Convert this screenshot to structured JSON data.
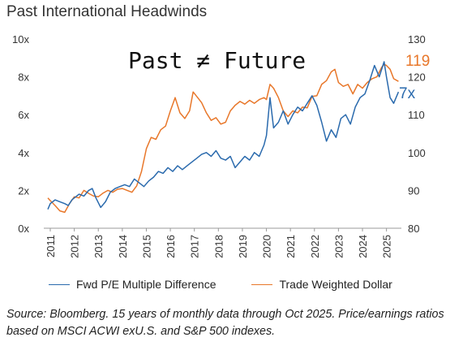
{
  "chart_data": {
    "type": "line",
    "title": "Past International Headwinds",
    "annotation": "Past ≠ Future",
    "x_ticks": [
      "2011",
      "2012",
      "2013",
      "2014",
      "2015",
      "2016",
      "2017",
      "2018",
      "2019",
      "2020",
      "2021",
      "2022",
      "2023",
      "2024",
      "2025"
    ],
    "y_left": {
      "ticks": [
        "0x",
        "2x",
        "4x",
        "6x",
        "8x",
        "10x"
      ],
      "range": [
        0,
        10
      ]
    },
    "y_right": {
      "ticks": [
        "80",
        "90",
        "100",
        "110",
        "120",
        "130"
      ],
      "range": [
        80,
        130
      ]
    },
    "grid": false,
    "legend_position": "bottom",
    "series": [
      {
        "name": "Fwd P/E Multiple Difference",
        "axis": "left",
        "color": "#2a6aad",
        "end_label": "7x",
        "points": [
          [
            2010.9,
            1.0
          ],
          [
            2011.0,
            1.3
          ],
          [
            2011.2,
            1.5
          ],
          [
            2011.4,
            1.4
          ],
          [
            2011.6,
            1.3
          ],
          [
            2011.75,
            1.2
          ],
          [
            2011.9,
            1.5
          ],
          [
            2012.0,
            1.6
          ],
          [
            2012.2,
            1.8
          ],
          [
            2012.4,
            1.7
          ],
          [
            2012.6,
            2.0
          ],
          [
            2012.75,
            2.1
          ],
          [
            2012.9,
            1.6
          ],
          [
            2013.1,
            1.1
          ],
          [
            2013.3,
            1.4
          ],
          [
            2013.5,
            1.9
          ],
          [
            2013.7,
            2.1
          ],
          [
            2013.9,
            2.2
          ],
          [
            2014.1,
            2.3
          ],
          [
            2014.3,
            2.2
          ],
          [
            2014.5,
            2.6
          ],
          [
            2014.7,
            2.4
          ],
          [
            2014.9,
            2.2
          ],
          [
            2015.1,
            2.5
          ],
          [
            2015.3,
            2.7
          ],
          [
            2015.5,
            3.0
          ],
          [
            2015.7,
            2.9
          ],
          [
            2015.9,
            3.2
          ],
          [
            2016.1,
            3.0
          ],
          [
            2016.3,
            3.3
          ],
          [
            2016.5,
            3.1
          ],
          [
            2016.7,
            3.3
          ],
          [
            2016.9,
            3.5
          ],
          [
            2017.1,
            3.7
          ],
          [
            2017.3,
            3.9
          ],
          [
            2017.5,
            4.0
          ],
          [
            2017.7,
            3.8
          ],
          [
            2017.9,
            4.1
          ],
          [
            2018.1,
            3.7
          ],
          [
            2018.3,
            3.6
          ],
          [
            2018.5,
            3.8
          ],
          [
            2018.7,
            3.2
          ],
          [
            2018.9,
            3.5
          ],
          [
            2019.1,
            3.8
          ],
          [
            2019.3,
            3.6
          ],
          [
            2019.5,
            4.0
          ],
          [
            2019.7,
            3.8
          ],
          [
            2019.9,
            4.4
          ],
          [
            2020.0,
            4.9
          ],
          [
            2020.15,
            6.9
          ],
          [
            2020.3,
            5.3
          ],
          [
            2020.5,
            5.6
          ],
          [
            2020.7,
            6.2
          ],
          [
            2020.9,
            5.5
          ],
          [
            2021.1,
            6.0
          ],
          [
            2021.3,
            6.4
          ],
          [
            2021.5,
            6.2
          ],
          [
            2021.7,
            6.6
          ],
          [
            2021.9,
            7.0
          ],
          [
            2022.1,
            6.5
          ],
          [
            2022.3,
            5.6
          ],
          [
            2022.5,
            4.6
          ],
          [
            2022.7,
            5.2
          ],
          [
            2022.9,
            4.8
          ],
          [
            2023.1,
            5.8
          ],
          [
            2023.3,
            6.0
          ],
          [
            2023.5,
            5.5
          ],
          [
            2023.7,
            6.4
          ],
          [
            2023.9,
            6.9
          ],
          [
            2024.1,
            7.1
          ],
          [
            2024.3,
            7.8
          ],
          [
            2024.5,
            8.6
          ],
          [
            2024.7,
            8.0
          ],
          [
            2024.9,
            8.8
          ],
          [
            2025.0,
            8.0
          ],
          [
            2025.15,
            6.9
          ],
          [
            2025.3,
            6.6
          ],
          [
            2025.5,
            7.2
          ]
        ]
      },
      {
        "name": "Trade Weighted Dollar",
        "axis": "right",
        "color": "#e8772a",
        "end_label": "119",
        "points": [
          [
            2010.9,
            88.0
          ],
          [
            2011.0,
            87.3
          ],
          [
            2011.2,
            86.0
          ],
          [
            2011.4,
            84.6
          ],
          [
            2011.6,
            84.2
          ],
          [
            2011.8,
            86.5
          ],
          [
            2012.0,
            88.3
          ],
          [
            2012.2,
            88.0
          ],
          [
            2012.4,
            90.0
          ],
          [
            2012.6,
            89.2
          ],
          [
            2012.8,
            88.5
          ],
          [
            2013.0,
            88.3
          ],
          [
            2013.2,
            89.3
          ],
          [
            2013.4,
            90.0
          ],
          [
            2013.6,
            89.5
          ],
          [
            2013.8,
            90.3
          ],
          [
            2014.0,
            90.5
          ],
          [
            2014.2,
            90.0
          ],
          [
            2014.4,
            89.5
          ],
          [
            2014.6,
            91.2
          ],
          [
            2014.8,
            95.0
          ],
          [
            2015.0,
            101.0
          ],
          [
            2015.2,
            104.0
          ],
          [
            2015.4,
            103.5
          ],
          [
            2015.6,
            106.0
          ],
          [
            2015.8,
            107.0
          ],
          [
            2016.0,
            111.0
          ],
          [
            2016.2,
            114.5
          ],
          [
            2016.4,
            110.5
          ],
          [
            2016.6,
            109.0
          ],
          [
            2016.8,
            111.0
          ],
          [
            2016.95,
            116.0
          ],
          [
            2017.1,
            114.8
          ],
          [
            2017.3,
            113.2
          ],
          [
            2017.5,
            110.5
          ],
          [
            2017.7,
            108.5
          ],
          [
            2017.9,
            109.2
          ],
          [
            2018.1,
            107.5
          ],
          [
            2018.3,
            108.0
          ],
          [
            2018.5,
            111.0
          ],
          [
            2018.7,
            112.5
          ],
          [
            2018.9,
            113.5
          ],
          [
            2019.1,
            112.8
          ],
          [
            2019.3,
            113.8
          ],
          [
            2019.5,
            113.0
          ],
          [
            2019.7,
            114.0
          ],
          [
            2019.9,
            114.5
          ],
          [
            2020.0,
            114.0
          ],
          [
            2020.15,
            118.0
          ],
          [
            2020.3,
            117.0
          ],
          [
            2020.5,
            114.5
          ],
          [
            2020.7,
            111.0
          ],
          [
            2020.9,
            109.5
          ],
          [
            2021.1,
            111.0
          ],
          [
            2021.3,
            110.5
          ],
          [
            2021.5,
            112.0
          ],
          [
            2021.7,
            111.8
          ],
          [
            2021.9,
            114.8
          ],
          [
            2022.1,
            115.0
          ],
          [
            2022.3,
            118.0
          ],
          [
            2022.5,
            119.0
          ],
          [
            2022.7,
            121.3
          ],
          [
            2022.85,
            122.0
          ],
          [
            2023.0,
            118.5
          ],
          [
            2023.2,
            117.5
          ],
          [
            2023.4,
            118.0
          ],
          [
            2023.6,
            115.5
          ],
          [
            2023.8,
            118.0
          ],
          [
            2024.0,
            117.0
          ],
          [
            2024.2,
            118.5
          ],
          [
            2024.4,
            119.5
          ],
          [
            2024.6,
            120.0
          ],
          [
            2024.8,
            122.5
          ],
          [
            2024.9,
            123.3
          ],
          [
            2025.0,
            123.0
          ],
          [
            2025.15,
            122.0
          ],
          [
            2025.3,
            119.5
          ],
          [
            2025.5,
            118.8
          ]
        ]
      }
    ]
  },
  "footnote": "Source: Bloomberg. 15 years of monthly data through Oct 2025. Price/earnings ratios based on MSCI ACWI exU.S. and S&P 500 indexes."
}
